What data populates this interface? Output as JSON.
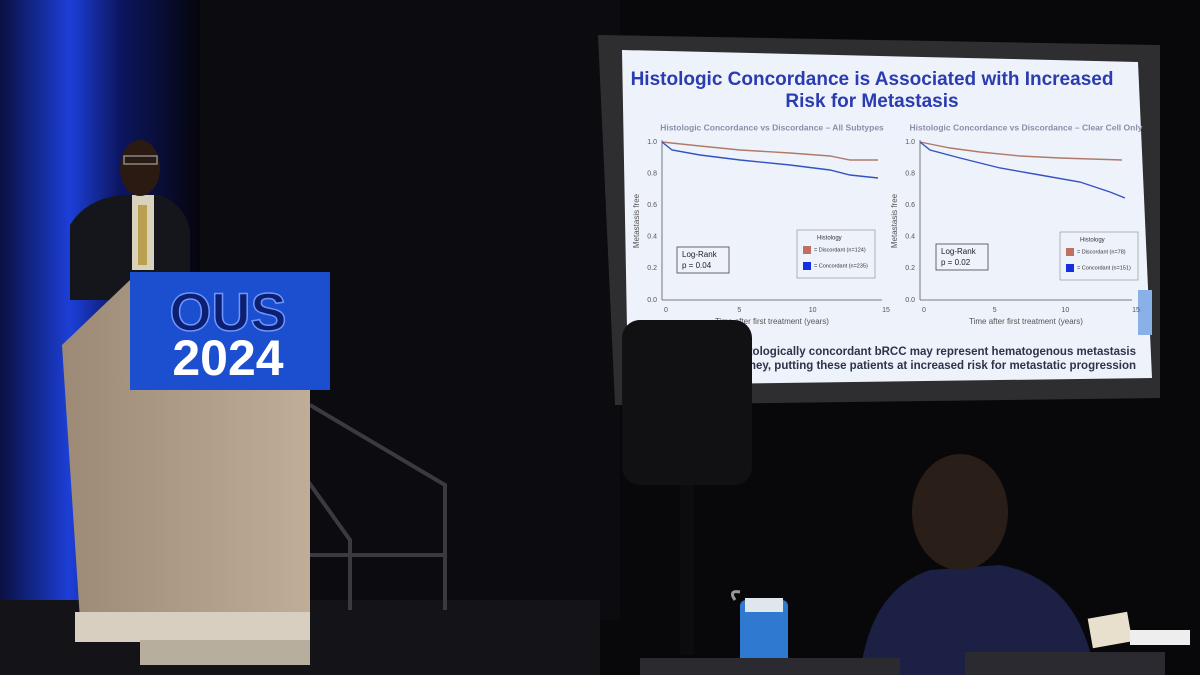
{
  "podium": {
    "line1": "OUS",
    "line2": "2024"
  },
  "slide": {
    "title": "Histologic Concordance is Associated with Increased Risk for Metastasis",
    "charts": [
      {
        "title": "Histologic Concordance vs Discordance – All Subtypes",
        "y_label": "Metastasis free",
        "x_label": "Time after first treatment (years)",
        "yticks": [
          "1.0",
          "0.8",
          "0.6",
          "0.4",
          "0.2",
          "0.0"
        ],
        "xticks": [
          "0",
          "5",
          "10",
          "15"
        ],
        "test": "Log-Rank",
        "p_value": "p = 0.04",
        "legend_title": "Histology",
        "legend": [
          "= Discordant (n=124)",
          "= Concordant (n=235)"
        ]
      },
      {
        "title": "Histologic Concordance vs Discordance – Clear Cell Only",
        "y_label": "Metastasis free",
        "x_label": "Time after first treatment (years)",
        "yticks": [
          "1.0",
          "0.8",
          "0.6",
          "0.4",
          "0.2",
          "0.0"
        ],
        "xticks": [
          "0",
          "5",
          "10",
          "15"
        ],
        "test": "Log-Rank",
        "p_value": "p = 0.02",
        "legend_title": "Histology",
        "legend": [
          "= Discordant (n=78)",
          "= Concordant (n=151)"
        ]
      }
    ],
    "conclusion_line1": "of histologically concordant bRCC may represent hematogenous metastasis",
    "conclusion_line2": "ral kidney, putting these patients at increased risk for metastatic progression"
  }
}
